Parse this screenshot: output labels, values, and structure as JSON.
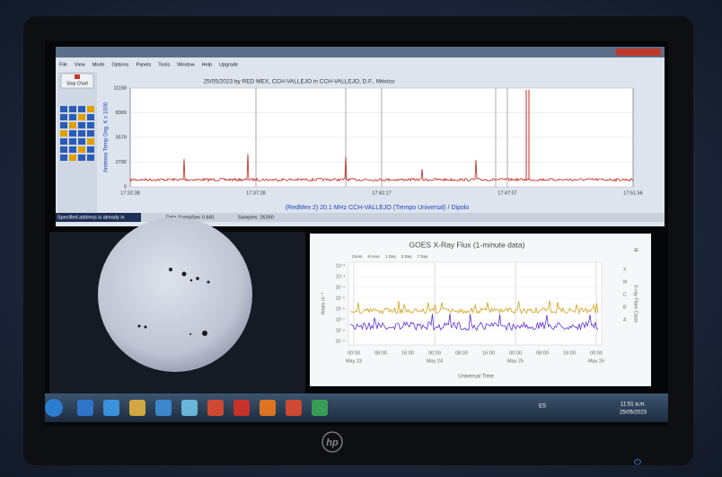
{
  "window": {
    "title": "25/05/2023  by  RED MEX, CCH-VALLEJO  in  CCH-VALLEJO, D.F., México",
    "menu": [
      "File",
      "View",
      "Mode",
      "Options",
      "Panels",
      "Tools",
      "Window",
      "Help",
      "Upgrade"
    ],
    "stop_button": "Stop Chart"
  },
  "radio_chart": {
    "y_label": "Antenna Temp Deg. K x 1000",
    "y_ticks": [
      "11158",
      "8369",
      "5579",
      "2790",
      "0"
    ],
    "x_ticks": [
      "17:32:38",
      "17:37:28",
      "17:42:17",
      "17:47:07",
      "17:51:56"
    ],
    "caption": "(RedMex 2) 20.1 MHz CCH-VALLEJO (Tiempo Universal) / Dipolo"
  },
  "status_bar": {
    "message": "Specified address is already in",
    "rate": "Data Samp/Sec 0.681",
    "samples": "Samples: 26260"
  },
  "goes_chart": {
    "title": "GOES X-Ray Flux (1-minute data)",
    "zoom": [
      "Zoom",
      "6 Hour",
      "1 Day",
      "3 Day",
      "7 Day"
    ],
    "y_ticks": [
      "10⁻²",
      "10⁻³",
      "10⁻⁴",
      "10⁻⁵",
      "10⁻⁶",
      "10⁻⁷",
      "10⁻⁸",
      "10⁻⁹"
    ],
    "y_label": "Watts m⁻²",
    "flare_classes": [
      "X",
      "M",
      "C",
      "B",
      "A"
    ],
    "right_label": "X-ray Flare Class",
    "x_ticks": [
      {
        "time": "00:00",
        "date": "May 23"
      },
      {
        "time": "08:00"
      },
      {
        "time": "16:00"
      },
      {
        "time": "00:00",
        "date": "May 24"
      },
      {
        "time": "08:00"
      },
      {
        "time": "16:00"
      },
      {
        "time": "00:00",
        "date": "May 25"
      },
      {
        "time": "08:00"
      },
      {
        "time": "16:00"
      },
      {
        "time": "00:00",
        "date": "May 26"
      }
    ],
    "x_label": "Universal Time"
  },
  "taskbar": {
    "language": "ES",
    "time": "11:51 a.m.",
    "date": "25/05/2023"
  },
  "monitor": {
    "brand": "hp"
  }
}
